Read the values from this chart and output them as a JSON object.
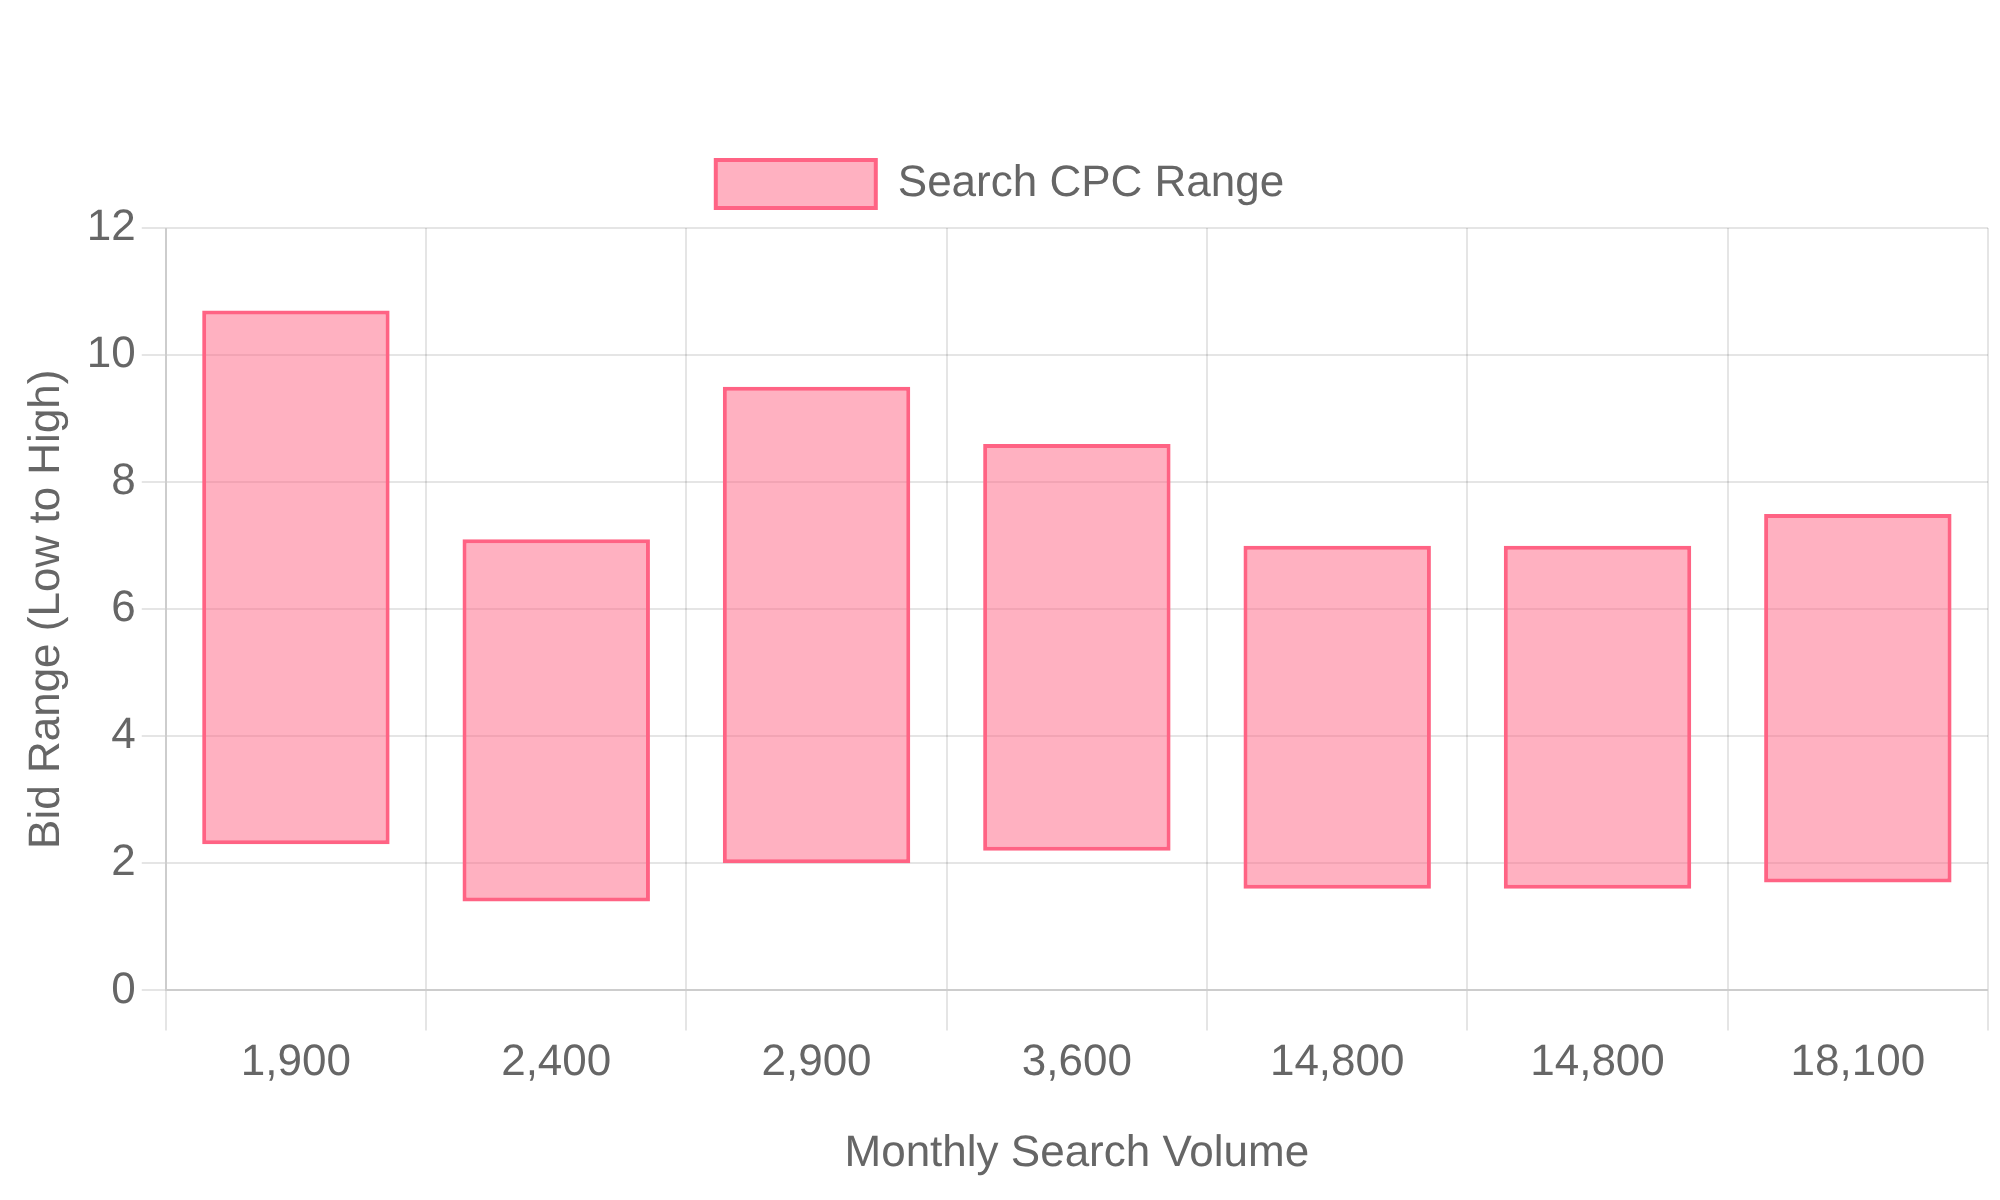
{
  "chart_data": {
    "type": "bar",
    "xlabel": "Monthly Search Volume",
    "ylabel": "Bid Range (Low to High)",
    "categories": [
      "1,900",
      "2,400",
      "2,900",
      "3,600",
      "14,800",
      "14,800",
      "18,100"
    ],
    "series": [
      {
        "name": "Search CPC Range",
        "color": "#ff6384",
        "base": [
          2.3,
          1.4,
          2.0,
          2.2,
          1.6,
          1.6,
          1.7
        ],
        "values": [
          8.4,
          5.7,
          7.5,
          6.4,
          5.4,
          5.4,
          5.8
        ]
      }
    ],
    "ylim": [
      0,
      12
    ],
    "yticks": [
      0,
      2,
      4,
      6,
      8,
      10,
      12
    ],
    "grid": true,
    "legend": "top"
  }
}
